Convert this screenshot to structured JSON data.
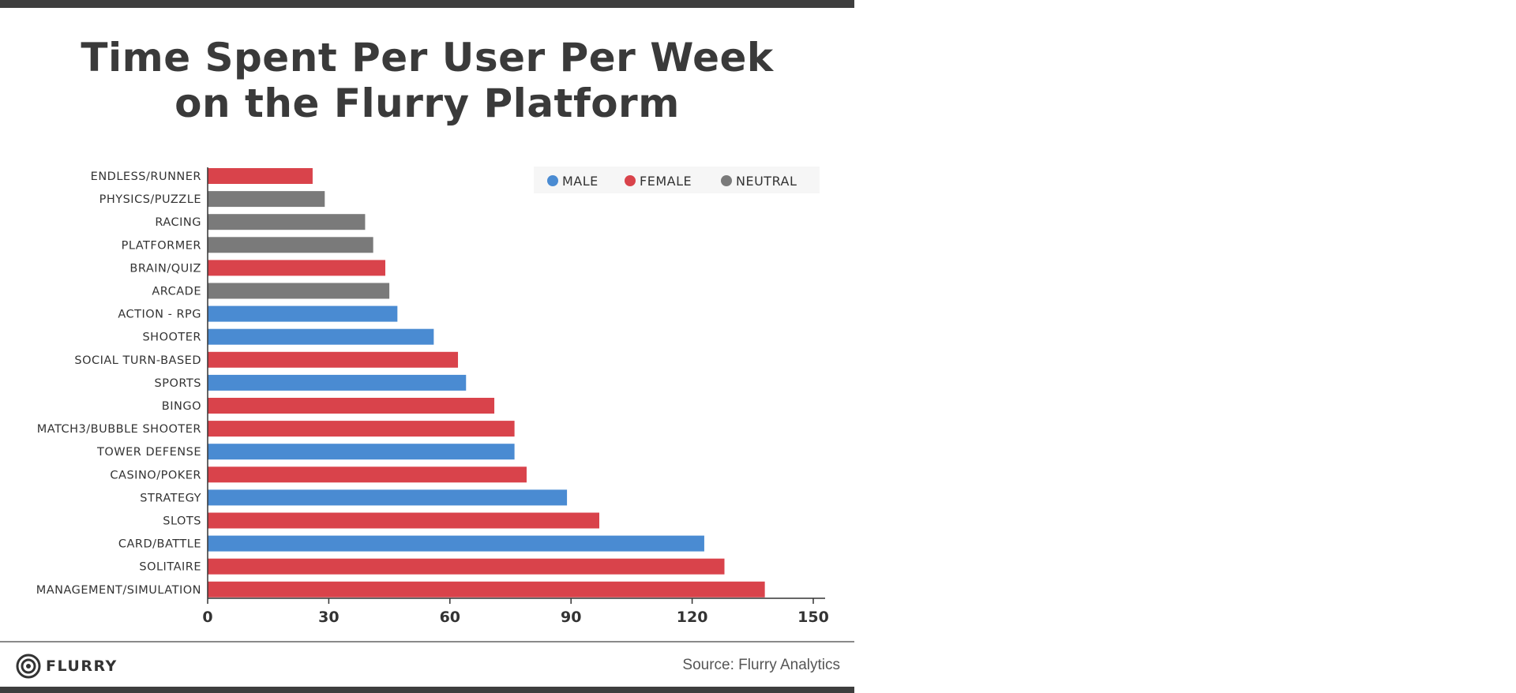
{
  "chart_data": {
    "type": "bar",
    "orientation": "horizontal",
    "title_lines": [
      "Time Spent Per User Per Week",
      "on the Flurry Platform"
    ],
    "categories": [
      "ENDLESS/RUNNER",
      "PHYSICS/PUZZLE",
      "RACING",
      "PLATFORMER",
      "BRAIN/QUIZ",
      "ARCADE",
      "ACTION - RPG",
      "SHOOTER",
      "SOCIAL TURN-BASED",
      "SPORTS",
      "BINGO",
      "MATCH3/BUBBLE SHOOTER",
      "TOWER DEFENSE",
      "CASINO/POKER",
      "STRATEGY",
      "SLOTS",
      "CARD/BATTLE",
      "SOLITAIRE",
      "MANAGEMENT/SIMULATION"
    ],
    "values": [
      26,
      29,
      39,
      41,
      44,
      45,
      47,
      56,
      62,
      64,
      71,
      76,
      76,
      79,
      89,
      97,
      123,
      128,
      138
    ],
    "groups": [
      "FEMALE",
      "NEUTRAL",
      "NEUTRAL",
      "NEUTRAL",
      "FEMALE",
      "NEUTRAL",
      "MALE",
      "MALE",
      "FEMALE",
      "MALE",
      "FEMALE",
      "FEMALE",
      "MALE",
      "FEMALE",
      "MALE",
      "FEMALE",
      "MALE",
      "FEMALE",
      "FEMALE"
    ],
    "legend": [
      {
        "name": "MALE",
        "color": "#4a8bd2"
      },
      {
        "name": "FEMALE",
        "color": "#d9434b"
      },
      {
        "name": "NEUTRAL",
        "color": "#7a7a7a"
      }
    ],
    "legend_position": "top-right",
    "xlim": [
      0,
      150
    ],
    "xticks": [
      0,
      30,
      60,
      90,
      120,
      150
    ],
    "grid": false
  },
  "footer": {
    "logo_text": "FLURRY",
    "source": "Source: Flurry Analytics"
  }
}
